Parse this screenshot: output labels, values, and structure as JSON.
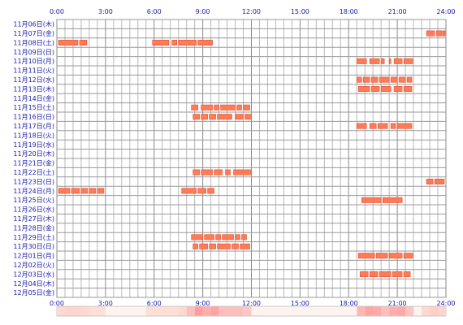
{
  "chart_data": {
    "type": "timeline",
    "x_axis": {
      "unit": "hour",
      "range": [
        0,
        24
      ],
      "tick_labels": [
        "0:00",
        "3:00",
        "6:00",
        "9:00",
        "12:00",
        "15:00",
        "18:00",
        "21:00",
        "24:00"
      ]
    },
    "grid": true,
    "bar_color": "#ff7b55",
    "bar_border_color": "#e0533a",
    "heat_strip": {
      "low_color": "#fde4dc",
      "high_color": "#ff9e9e"
    },
    "rows": [
      {
        "label": "11月06日(木)",
        "segments": []
      },
      {
        "label": "11月07日(金)",
        "segments": [
          [
            22.8,
            23.3
          ],
          [
            23.4,
            23.75
          ],
          [
            23.8,
            23.95
          ]
        ]
      },
      {
        "label": "11月08日(土)",
        "segments": [
          [
            0.1,
            1.3
          ],
          [
            1.4,
            1.85
          ],
          [
            5.9,
            6.9
          ],
          [
            7.1,
            7.4
          ],
          [
            7.5,
            8.6
          ],
          [
            8.7,
            9.6
          ]
        ]
      },
      {
        "label": "11月09日(日)",
        "segments": []
      },
      {
        "label": "11月10日(月)",
        "segments": [
          [
            18.5,
            19.1
          ],
          [
            19.3,
            19.9
          ],
          [
            20.0,
            20.2
          ],
          [
            20.5,
            20.6
          ],
          [
            20.8,
            21.3
          ],
          [
            21.4,
            21.95
          ]
        ]
      },
      {
        "label": "11月11日(火)",
        "segments": []
      },
      {
        "label": "11月12日(水)",
        "segments": [
          [
            18.5,
            18.8
          ],
          [
            18.9,
            19.3
          ],
          [
            19.4,
            19.8
          ],
          [
            19.9,
            20.5
          ],
          [
            20.6,
            21.0
          ],
          [
            21.1,
            21.5
          ],
          [
            21.6,
            21.9
          ]
        ]
      },
      {
        "label": "11月13日(木)",
        "segments": [
          [
            18.6,
            19.3
          ],
          [
            19.4,
            19.9
          ],
          [
            20.0,
            20.6
          ],
          [
            20.8,
            21.3
          ],
          [
            21.4,
            21.9
          ]
        ]
      },
      {
        "label": "11月14日(金)",
        "segments": []
      },
      {
        "label": "11月15日(土)",
        "segments": [
          [
            8.3,
            8.7
          ],
          [
            8.9,
            9.6
          ],
          [
            9.7,
            10.0
          ],
          [
            10.1,
            11.0
          ],
          [
            11.1,
            11.4
          ],
          [
            11.5,
            11.9
          ]
        ]
      },
      {
        "label": "11月16日(日)",
        "segments": [
          [
            8.4,
            8.8
          ],
          [
            8.9,
            9.3
          ],
          [
            9.4,
            9.8
          ],
          [
            9.9,
            10.8
          ],
          [
            11.0,
            11.5
          ],
          [
            11.6,
            11.95
          ]
        ]
      },
      {
        "label": "11月17日(月)",
        "segments": [
          [
            18.5,
            19.1
          ],
          [
            19.3,
            19.7
          ],
          [
            19.8,
            20.4
          ],
          [
            20.6,
            20.9
          ],
          [
            21.0,
            21.9
          ]
        ]
      },
      {
        "label": "11月18日(火)",
        "segments": []
      },
      {
        "label": "11月19日(水)",
        "segments": []
      },
      {
        "label": "11月20日(木)",
        "segments": []
      },
      {
        "label": "11月21日(金)",
        "segments": []
      },
      {
        "label": "11月22日(土)",
        "segments": [
          [
            8.4,
            8.8
          ],
          [
            8.9,
            9.6
          ],
          [
            9.7,
            10.2
          ],
          [
            10.4,
            10.7
          ],
          [
            10.9,
            11.95
          ]
        ]
      },
      {
        "label": "11月23日(日)",
        "segments": [
          [
            22.8,
            23.2
          ],
          [
            23.3,
            23.9
          ]
        ]
      },
      {
        "label": "11月24日(月)",
        "segments": [
          [
            0.1,
            0.8
          ],
          [
            0.9,
            1.4
          ],
          [
            1.5,
            1.9
          ],
          [
            2.0,
            2.4
          ],
          [
            2.5,
            2.9
          ],
          [
            7.7,
            8.6
          ],
          [
            8.7,
            9.2
          ],
          [
            9.3,
            9.7
          ]
        ]
      },
      {
        "label": "11月25日(火)",
        "segments": [
          [
            18.8,
            20.0
          ],
          [
            20.1,
            21.3
          ]
        ]
      },
      {
        "label": "11月26日(水)",
        "segments": []
      },
      {
        "label": "11月27日(木)",
        "segments": []
      },
      {
        "label": "11月28日(金)",
        "segments": []
      },
      {
        "label": "11月29日(土)",
        "segments": [
          [
            8.3,
            9.0
          ],
          [
            9.1,
            9.7
          ],
          [
            9.8,
            10.1
          ],
          [
            10.2,
            10.9
          ],
          [
            11.0,
            11.3
          ],
          [
            11.4,
            11.7
          ]
        ]
      },
      {
        "label": "11月30日(日)",
        "segments": [
          [
            8.4,
            8.7
          ],
          [
            8.8,
            9.3
          ],
          [
            9.4,
            9.8
          ],
          [
            9.9,
            10.7
          ],
          [
            10.8,
            11.2
          ],
          [
            11.3,
            11.9
          ]
        ]
      },
      {
        "label": "12月01日(月)",
        "segments": [
          [
            18.6,
            19.6
          ],
          [
            19.7,
            20.4
          ],
          [
            20.5,
            21.3
          ],
          [
            21.4,
            21.95
          ]
        ]
      },
      {
        "label": "12月02日(火)",
        "segments": []
      },
      {
        "label": "12月03日(水)",
        "segments": [
          [
            18.7,
            19.2
          ],
          [
            19.3,
            19.8
          ],
          [
            19.9,
            20.6
          ],
          [
            20.7,
            21.3
          ],
          [
            21.4,
            21.8
          ]
        ]
      },
      {
        "label": "12月04日(木)",
        "segments": []
      },
      {
        "label": "12月05日(金)",
        "segments": []
      }
    ]
  }
}
